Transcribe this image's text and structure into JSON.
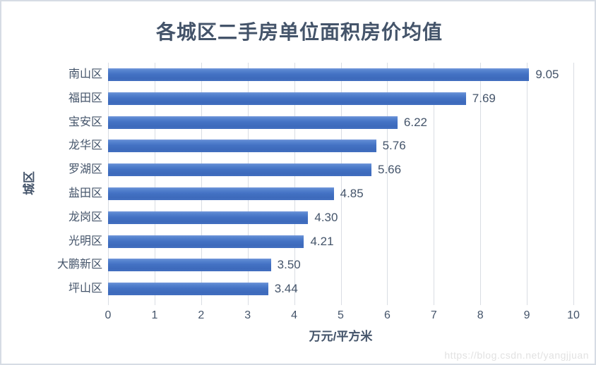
{
  "watermark": "https://blog.csdn.net/yangjjuan",
  "colors": {
    "bar": "#4472C4",
    "text": "#44546A",
    "gridline": "#D9DDE3",
    "border": "#D6DCE4",
    "watermark_text": "#E2E2E2",
    "background": "#FFFFFF"
  },
  "chart_data": {
    "type": "bar",
    "orientation": "horizontal",
    "title": "各城区二手房单位面积房价均值",
    "categories": [
      "南山区",
      "福田区",
      "宝安区",
      "龙华区",
      "罗湖区",
      "盐田区",
      "龙岗区",
      "光明区",
      "大鹏新区",
      "坪山区"
    ],
    "values": [
      9.05,
      7.69,
      6.22,
      5.76,
      5.66,
      4.85,
      4.3,
      4.21,
      3.5,
      3.44
    ],
    "value_labels": [
      "9.05",
      "7.69",
      "6.22",
      "5.76",
      "5.66",
      "4.85",
      "4.30",
      "4.21",
      "3.50",
      "3.44"
    ],
    "xlabel": "万元/平方米",
    "ylabel": "城区",
    "xlim": [
      0,
      10
    ],
    "xticks": [
      0,
      1,
      2,
      3,
      4,
      5,
      6,
      7,
      8,
      9,
      10
    ],
    "grid": true,
    "legend": false,
    "value_labels_shown": true
  }
}
